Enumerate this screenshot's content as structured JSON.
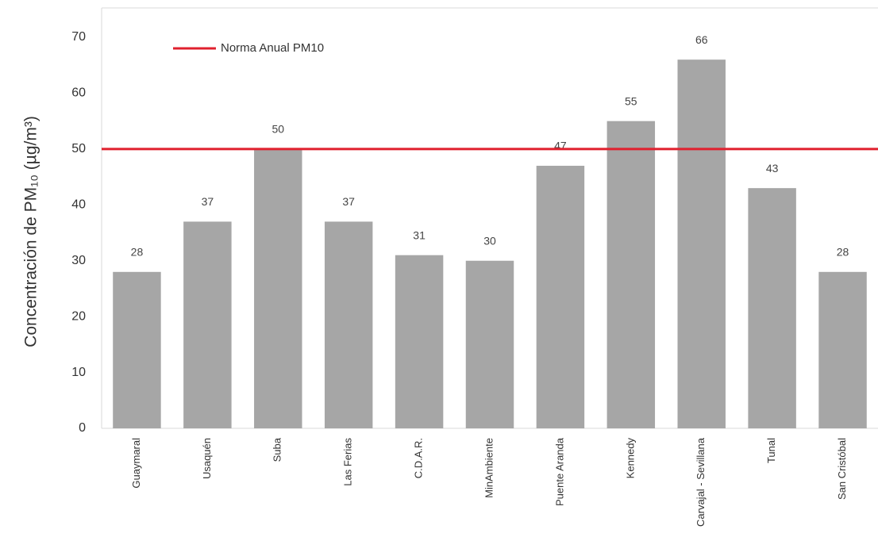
{
  "chart_data": {
    "type": "bar",
    "y_label": "Concentración de PM₁₀ (µg/m³)",
    "categories": [
      "Guaymaral",
      "Usaquén",
      "Suba",
      "Las Ferias",
      "C.D.A.R.",
      "MinAmbiente",
      "Puente Aranda",
      "Kennedy",
      "Carvajal - Sevillana",
      "Tunal",
      "San Cristóbal"
    ],
    "values": [
      28,
      37,
      50,
      37,
      31,
      30,
      47,
      55,
      66,
      43,
      28
    ],
    "color": "#a6a6a6",
    "ylim": [
      0,
      70
    ],
    "yticks": [
      0,
      10,
      20,
      30,
      40,
      50,
      60,
      70
    ],
    "reference_line": {
      "name": "Norma Anual PM10",
      "value": 50,
      "color": "#e0202e"
    }
  }
}
